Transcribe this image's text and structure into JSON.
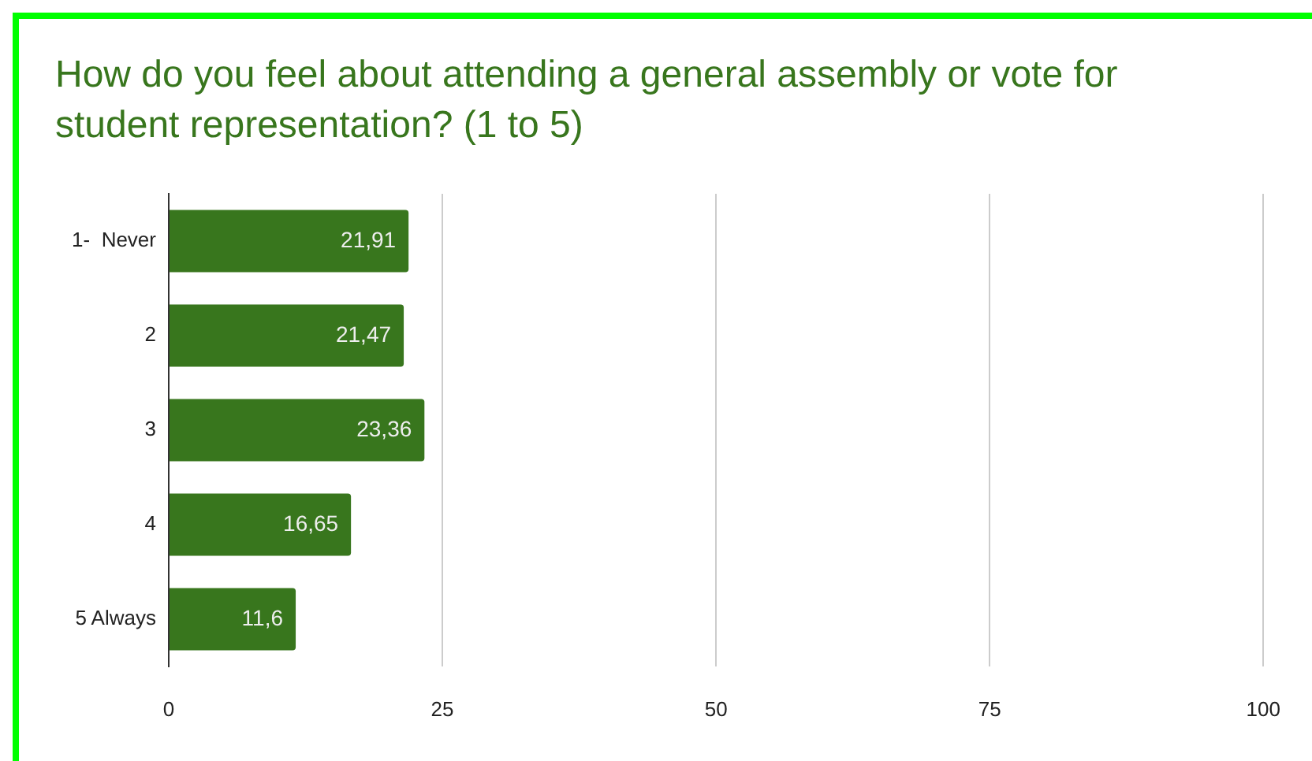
{
  "chart_data": {
    "type": "bar",
    "orientation": "horizontal",
    "title": "How do you feel about attending a general assembly or vote for student representation? (1 to 5)",
    "categories": [
      "1-  Never",
      "2",
      "3",
      "4",
      "5 Always"
    ],
    "values": [
      21.91,
      21.47,
      23.36,
      16.65,
      11.6
    ],
    "value_labels": [
      "21,91",
      "21,47",
      "23,36",
      "16,65",
      "11,6"
    ],
    "color": "#38761d",
    "xlim": [
      0,
      100
    ],
    "xticks": [
      0,
      25,
      50,
      75,
      100
    ],
    "grid": "x"
  }
}
